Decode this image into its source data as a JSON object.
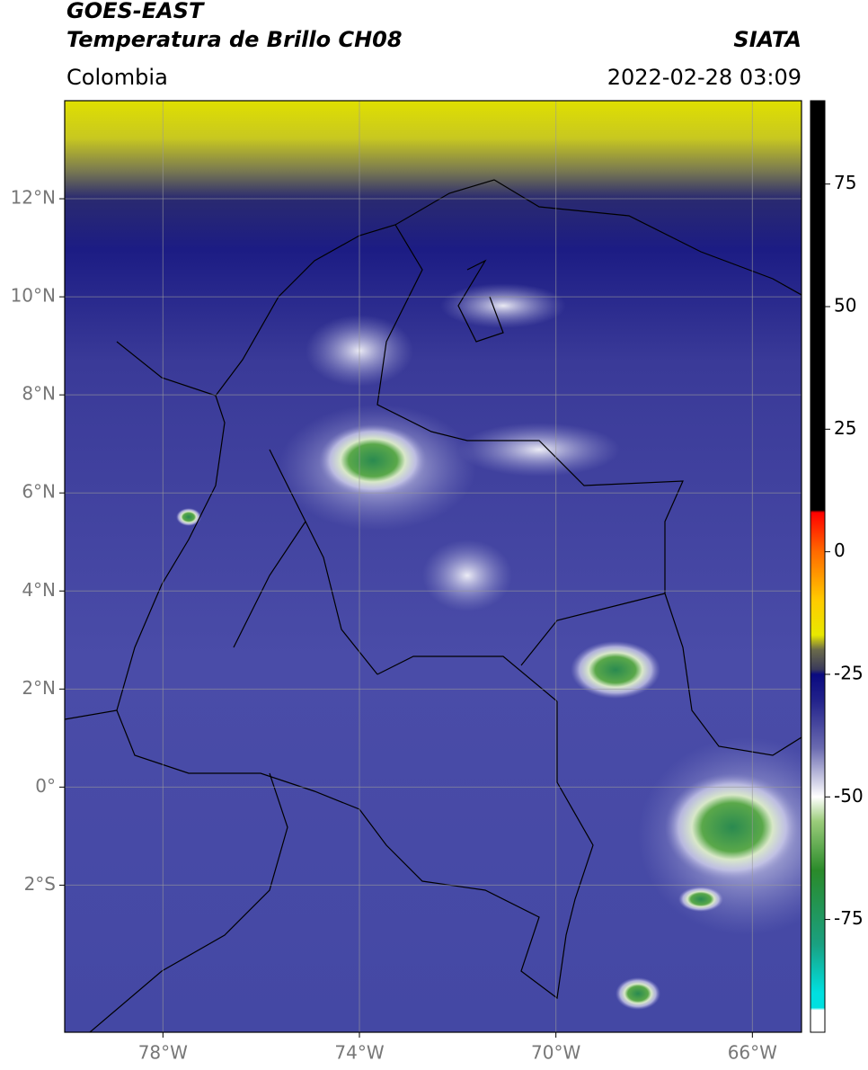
{
  "chart_data": {
    "type": "map",
    "title": "GOES-EAST",
    "subtitle": "Temperatura de Brillo CH08",
    "source": "SIATA",
    "region": "Colombia",
    "timestamp": "2022-02-28 03:09",
    "xlim": [
      -80,
      -65
    ],
    "ylim": [
      -5,
      14
    ],
    "xticks": [
      {
        "value": -78,
        "label": "78°W"
      },
      {
        "value": -74,
        "label": "74°W"
      },
      {
        "value": -70,
        "label": "70°W"
      },
      {
        "value": -66,
        "label": "66°W"
      }
    ],
    "yticks": [
      {
        "value": 12,
        "label": "12°N"
      },
      {
        "value": 10,
        "label": "10°N"
      },
      {
        "value": 8,
        "label": "8°N"
      },
      {
        "value": 6,
        "label": "6°N"
      },
      {
        "value": 4,
        "label": "4°N"
      },
      {
        "value": 2,
        "label": "2°N"
      },
      {
        "value": 0,
        "label": "0°"
      },
      {
        "value": -2,
        "label": "2°S"
      }
    ],
    "grid": true,
    "clim": [
      -98,
      92
    ],
    "cticks": [
      75,
      50,
      25,
      0,
      -25,
      -50,
      -75
    ],
    "colormap": [
      {
        "value": 92,
        "color": "#000000"
      },
      {
        "value": 8.5,
        "color": "#000000"
      },
      {
        "value": 8,
        "color": "#ff0000"
      },
      {
        "value": 0,
        "color": "#ff6a00"
      },
      {
        "value": -10,
        "color": "#ffcc00"
      },
      {
        "value": -17,
        "color": "#e8e800"
      },
      {
        "value": -20,
        "color": "#6a6a4a"
      },
      {
        "value": -24,
        "color": "#3a3a5a"
      },
      {
        "value": -25,
        "color": "#0a0a80"
      },
      {
        "value": -30,
        "color": "#20208a"
      },
      {
        "value": -40,
        "color": "#6a6ab0"
      },
      {
        "value": -50,
        "color": "#ffffff"
      },
      {
        "value": -55,
        "color": "#9acc7a"
      },
      {
        "value": -65,
        "color": "#2a8a2a"
      },
      {
        "value": -80,
        "color": "#1aa080"
      },
      {
        "value": -90,
        "color": "#00e0e0"
      },
      {
        "value": -93,
        "color": "#00e0e0"
      },
      {
        "value": -93.5,
        "color": "#ffffff"
      },
      {
        "value": -98,
        "color": "#ffffff"
      }
    ]
  }
}
